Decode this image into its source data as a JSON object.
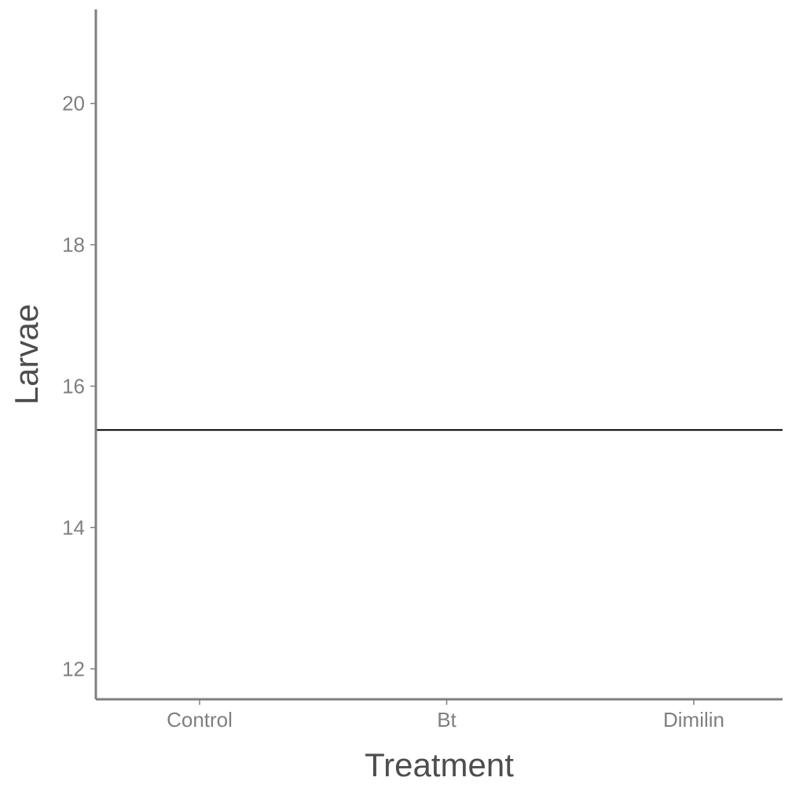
{
  "chart_data": {
    "type": "line",
    "title": "",
    "xlabel": "Treatment",
    "ylabel": "Larvae",
    "categories": [
      "Control",
      "Bt",
      "Dimilin"
    ],
    "ylim": [
      11.57,
      21.33
    ],
    "yticks": [
      12,
      14,
      16,
      18,
      20
    ],
    "series": [
      {
        "type": "hline",
        "y": 15.38,
        "color": "#000000"
      }
    ],
    "grid": false,
    "legend": "none",
    "axis_color": "#7f7f7f"
  }
}
